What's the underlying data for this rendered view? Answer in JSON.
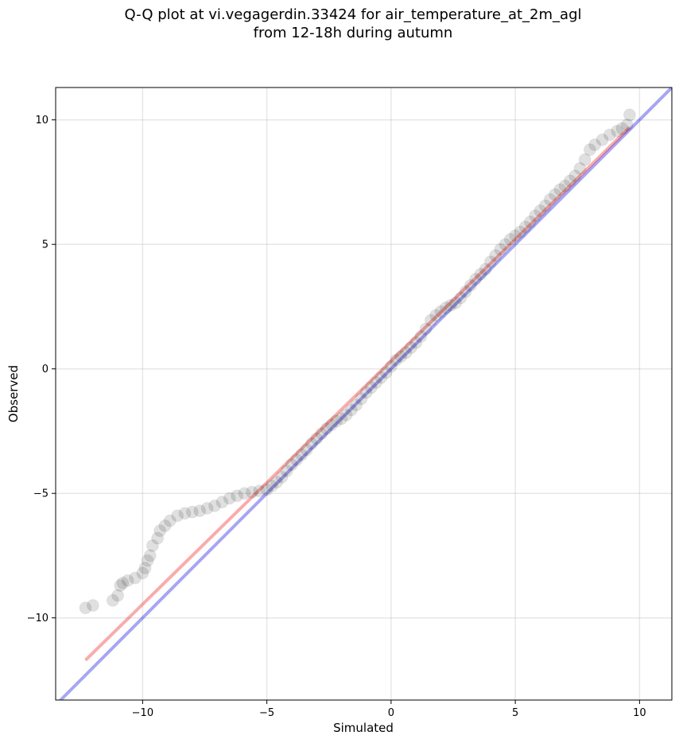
{
  "chart_data": {
    "type": "scatter",
    "title_lines": [
      "Q-Q plot at vi.vegagerdin.33424 for air_temperature_at_2m_agl",
      "from 12-18h during autumn"
    ],
    "xlabel": "Simulated",
    "ylabel": "Observed",
    "xlim": [
      -13.5,
      11.3
    ],
    "ylim": [
      -13.3,
      11.3
    ],
    "xticks": [
      -10,
      -5,
      0,
      5,
      10
    ],
    "yticks": [
      -10,
      -5,
      0,
      5,
      10
    ],
    "xtick_labels": [
      "−10",
      "−5",
      "0",
      "5",
      "10"
    ],
    "ytick_labels": [
      "−10",
      "−5",
      "0",
      "5",
      "10"
    ],
    "grid": true,
    "lines": [
      {
        "kind": "identity",
        "color": "#0000dd",
        "x": [
          -13.5,
          11.3
        ],
        "y": [
          -13.5,
          11.3
        ]
      },
      {
        "kind": "fit",
        "color": "#ee1111",
        "x": [
          -12.3,
          9.6
        ],
        "y": [
          -11.7,
          9.7
        ]
      }
    ],
    "marker_color": "#000000",
    "points": [
      [
        -12.3,
        -9.6
      ],
      [
        -12.0,
        -9.5
      ],
      [
        -11.2,
        -9.3
      ],
      [
        -11.0,
        -9.1
      ],
      [
        -10.9,
        -8.7
      ],
      [
        -10.8,
        -8.6
      ],
      [
        -10.6,
        -8.5
      ],
      [
        -10.3,
        -8.4
      ],
      [
        -10.0,
        -8.2
      ],
      [
        -9.9,
        -8.0
      ],
      [
        -9.8,
        -7.7
      ],
      [
        -9.7,
        -7.5
      ],
      [
        -9.6,
        -7.1
      ],
      [
        -9.4,
        -6.8
      ],
      [
        -9.3,
        -6.5
      ],
      [
        -9.1,
        -6.3
      ],
      [
        -8.9,
        -6.1
      ],
      [
        -8.6,
        -5.9
      ],
      [
        -8.3,
        -5.8
      ],
      [
        -8.0,
        -5.75
      ],
      [
        -7.7,
        -5.7
      ],
      [
        -7.4,
        -5.6
      ],
      [
        -7.1,
        -5.5
      ],
      [
        -6.8,
        -5.35
      ],
      [
        -6.5,
        -5.2
      ],
      [
        -6.2,
        -5.1
      ],
      [
        -5.9,
        -5.0
      ],
      [
        -5.6,
        -4.95
      ],
      [
        -5.3,
        -4.9
      ],
      [
        -5.0,
        -4.85
      ],
      [
        -4.8,
        -4.7
      ],
      [
        -4.6,
        -4.55
      ],
      [
        -4.4,
        -4.35
      ],
      [
        -4.2,
        -4.1
      ],
      [
        -4.0,
        -3.85
      ],
      [
        -3.8,
        -3.65
      ],
      [
        -3.6,
        -3.45
      ],
      [
        -3.4,
        -3.25
      ],
      [
        -3.2,
        -3.0
      ],
      [
        -3.0,
        -2.8
      ],
      [
        -2.8,
        -2.6
      ],
      [
        -2.6,
        -2.4
      ],
      [
        -2.4,
        -2.25
      ],
      [
        -2.2,
        -2.1
      ],
      [
        -2.0,
        -2.0
      ],
      [
        -1.8,
        -1.85
      ],
      [
        -1.6,
        -1.65
      ],
      [
        -1.4,
        -1.45
      ],
      [
        -1.2,
        -1.2
      ],
      [
        -1.0,
        -0.95
      ],
      [
        -0.8,
        -0.75
      ],
      [
        -0.6,
        -0.55
      ],
      [
        -0.4,
        -0.35
      ],
      [
        -0.2,
        -0.15
      ],
      [
        0.0,
        0.1
      ],
      [
        0.2,
        0.35
      ],
      [
        0.4,
        0.5
      ],
      [
        0.6,
        0.65
      ],
      [
        0.8,
        0.85
      ],
      [
        1.0,
        1.05
      ],
      [
        1.2,
        1.3
      ],
      [
        1.4,
        1.6
      ],
      [
        1.6,
        1.95
      ],
      [
        1.8,
        2.15
      ],
      [
        2.0,
        2.3
      ],
      [
        2.2,
        2.45
      ],
      [
        2.4,
        2.55
      ],
      [
        2.6,
        2.65
      ],
      [
        2.8,
        2.85
      ],
      [
        3.0,
        3.1
      ],
      [
        3.2,
        3.35
      ],
      [
        3.4,
        3.6
      ],
      [
        3.6,
        3.8
      ],
      [
        3.8,
        4.0
      ],
      [
        4.0,
        4.3
      ],
      [
        4.2,
        4.55
      ],
      [
        4.4,
        4.8
      ],
      [
        4.6,
        5.0
      ],
      [
        4.8,
        5.2
      ],
      [
        5.0,
        5.35
      ],
      [
        5.2,
        5.5
      ],
      [
        5.4,
        5.7
      ],
      [
        5.6,
        5.9
      ],
      [
        5.8,
        6.15
      ],
      [
        6.0,
        6.35
      ],
      [
        6.2,
        6.55
      ],
      [
        6.4,
        6.8
      ],
      [
        6.6,
        7.0
      ],
      [
        6.8,
        7.2
      ],
      [
        7.0,
        7.35
      ],
      [
        7.2,
        7.55
      ],
      [
        7.4,
        7.75
      ],
      [
        7.6,
        8.05
      ],
      [
        7.8,
        8.4
      ],
      [
        8.0,
        8.8
      ],
      [
        8.2,
        9.0
      ],
      [
        8.5,
        9.2
      ],
      [
        8.8,
        9.4
      ],
      [
        9.1,
        9.55
      ],
      [
        9.3,
        9.65
      ],
      [
        9.5,
        9.8
      ],
      [
        9.6,
        10.2
      ]
    ]
  }
}
